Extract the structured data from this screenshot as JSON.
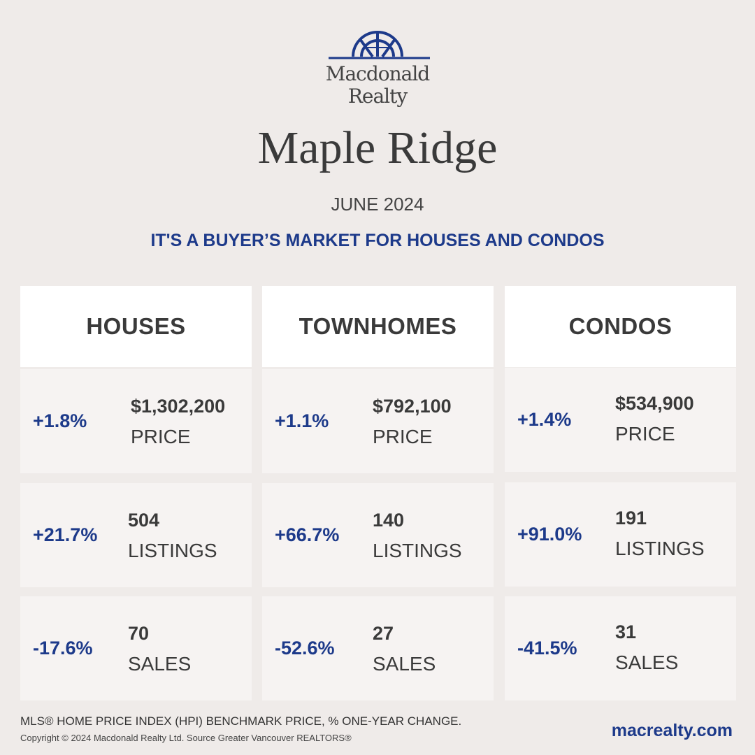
{
  "brand": {
    "line1": "Macdonald",
    "line2": "Realty",
    "color": "#1d3a8a"
  },
  "header": {
    "city": "Maple Ridge",
    "date": "JUNE 2024",
    "tagline": "IT'S A BUYER’S MARKET FOR HOUSES AND CONDOS"
  },
  "columns": [
    {
      "title": "HOUSES",
      "price": {
        "change": "+1.8%",
        "value": "$1,302,200",
        "label": "PRICE"
      },
      "listings": {
        "change": "+21.7%",
        "value": "504",
        "label": "LISTINGS"
      },
      "sales": {
        "change": "-17.6%",
        "value": "70",
        "label": "SALES"
      }
    },
    {
      "title": "TOWNHOMES",
      "price": {
        "change": "+1.1%",
        "value": "$792,100",
        "label": "PRICE"
      },
      "listings": {
        "change": "+66.7%",
        "value": "140",
        "label": "LISTINGS"
      },
      "sales": {
        "change": "-52.6%",
        "value": "27",
        "label": "SALES"
      }
    },
    {
      "title": "CONDOS",
      "price": {
        "change": "+1.4%",
        "value": "$534,900",
        "label": "PRICE"
      },
      "listings": {
        "change": "+91.0%",
        "value": "191",
        "label": "LISTINGS"
      },
      "sales": {
        "change": "-41.5%",
        "value": "31",
        "label": "SALES"
      }
    }
  ],
  "footer": {
    "note": "MLS® HOME PRICE INDEX (HPI) BENCHMARK PRICE, % ONE-YEAR CHANGE.",
    "copyright": "Copyright © 2024 Macdonald Realty Ltd. Source Greater Vancouver REALTORS®",
    "website": "macrealty.com"
  }
}
